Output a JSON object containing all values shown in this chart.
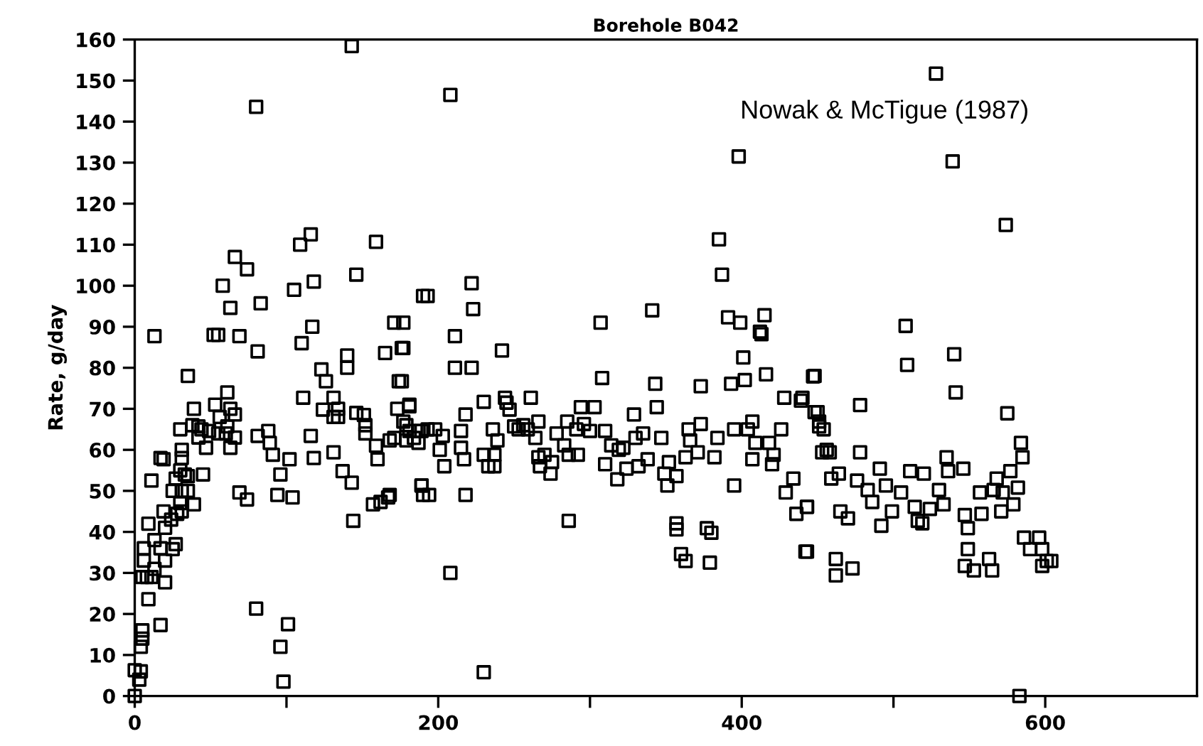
{
  "chart_data": {
    "type": "scatter",
    "title": "Borehole B042",
    "ylabel": "Rate, g/day",
    "annotations": [
      "Nowak & McTigue (1987)"
    ],
    "marker": "square",
    "grid": false,
    "xlim": [
      0,
      700
    ],
    "ylim": [
      0,
      160
    ],
    "xticks": [
      0,
      {
        "value": 100,
        "label": null
      },
      200,
      {
        "value": 300,
        "label": null
      },
      400,
      {
        "value": 500,
        "label": null
      },
      600
    ],
    "yticks": [
      0,
      10,
      20,
      30,
      40,
      50,
      60,
      70,
      80,
      90,
      100,
      110,
      120,
      130,
      140,
      150,
      160
    ],
    "series": [
      {
        "color": "#000000",
        "x": [
          0,
          0,
          4,
          3,
          4,
          5,
          5,
          9,
          17,
          5,
          8,
          11,
          6,
          6,
          13,
          20,
          9,
          17,
          19,
          20,
          13,
          20,
          17,
          19,
          11,
          13,
          25,
          27,
          24,
          28,
          30,
          25,
          27,
          31,
          33,
          30,
          31,
          31,
          35,
          35,
          31,
          39,
          35,
          30,
          39,
          38,
          42,
          45,
          42,
          47,
          49,
          44,
          52,
          55,
          58,
          63,
          66,
          74,
          69,
          53,
          56,
          61,
          63,
          66,
          61,
          60,
          55,
          63,
          66,
          69,
          74,
          80,
          81,
          83,
          80,
          81,
          88,
          89,
          91,
          94,
          96,
          96,
          98,
          101,
          102,
          104,
          105,
          109,
          116,
          110,
          111,
          116,
          118,
          118,
          117,
          123,
          126,
          124,
          131,
          131,
          131,
          134,
          134,
          137,
          143,
          143,
          146,
          144,
          140,
          140,
          146,
          151,
          152,
          152,
          159,
          159,
          160,
          157,
          162,
          167,
          168,
          165,
          171,
          176,
          174,
          173,
          181,
          168,
          171,
          179,
          179,
          189,
          190,
          190,
          187,
          177,
          177,
          176,
          181,
          177,
          181,
          184,
          189,
          193,
          187,
          198,
          203,
          201,
          204,
          189,
          194,
          193,
          208,
          211,
          211,
          222,
          222,
          223,
          215,
          215,
          217,
          218,
          218,
          230,
          208,
          230,
          230,
          233,
          237,
          237,
          236,
          239,
          242,
          244,
          245,
          247,
          250,
          253,
          256,
          259,
          261,
          266,
          264,
          266,
          267,
          270,
          274,
          275,
          278,
          283,
          285,
          286,
          286,
          291,
          292,
          294,
          296,
          300,
          303,
          307,
          308,
          310,
          310,
          314,
          318,
          319,
          322,
          324,
          329,
          330,
          332,
          335,
          338,
          341,
          343,
          344,
          347,
          349,
          351,
          352,
          357,
          357,
          357,
          360,
          363,
          363,
          365,
          366,
          371,
          373,
          373,
          377,
          380,
          379,
          382,
          384,
          385,
          387,
          391,
          393,
          395,
          395,
          398,
          399,
          401,
          402,
          404,
          407,
          409,
          407,
          412,
          413,
          415,
          416,
          418,
          421,
          420,
          426,
          428,
          429,
          434,
          436,
          440,
          442,
          443,
          447,
          448,
          451,
          453,
          439,
          448,
          450,
          451,
          454,
          456,
          458,
          459,
          443,
          443,
          462,
          462,
          465,
          470,
          473,
          464,
          476,
          478,
          478,
          483,
          486,
          491,
          492,
          495,
          499,
          505,
          508,
          509,
          511,
          514,
          516,
          519,
          520,
          524,
          528,
          530,
          533,
          535,
          536,
          539,
          540,
          541,
          546,
          547,
          549,
          549,
          547,
          553,
          557,
          558,
          563,
          565,
          566,
          568,
          571,
          572,
          574,
          575,
          577,
          579,
          582,
          583,
          584,
          585,
          586,
          590,
          596,
          598,
          598,
          601,
          604
        ],
        "values": [
          0,
          6.3,
          6,
          4,
          12,
          14,
          16,
          23.6,
          17.3,
          29,
          29,
          29,
          33,
          36,
          31,
          27.7,
          42,
          36,
          45,
          41,
          38,
          33,
          58,
          57.7,
          52.5,
          87.7,
          35.8,
          37,
          43,
          44.4,
          47,
          50,
          53,
          50,
          54,
          55,
          58,
          60,
          53.6,
          50,
          45,
          46.7,
          78,
          65,
          70,
          66,
          65.7,
          54,
          63,
          60.5,
          64.6,
          65,
          88,
          88,
          100,
          94.6,
          107,
          104,
          87.7,
          71,
          68,
          74,
          70,
          68.6,
          65.7,
          64,
          64,
          60.5,
          63,
          49.6,
          47.9,
          143.6,
          84,
          95.7,
          21.3,
          63.4,
          64.6,
          61.7,
          58.8,
          49,
          54,
          12,
          3.5,
          17.5,
          57.7,
          48.4,
          99,
          110,
          112.5,
          86,
          72.7,
          63.4,
          101,
          58,
          90,
          79.6,
          76.7,
          69.8,
          72.7,
          68,
          59.4,
          70,
          68,
          54.8,
          52,
          158.4,
          102.7,
          42.7,
          83,
          80,
          69,
          68.5,
          66,
          64,
          110.7,
          61,
          57.7,
          46.7,
          47.3,
          48.4,
          49,
          83.6,
          91,
          84.8,
          76.7,
          70,
          70.6,
          62.3,
          62.9,
          66,
          62.3,
          51.3,
          49,
          97.5,
          64.6,
          91,
          84.8,
          76.7,
          71,
          66.9,
          64.6,
          62.9,
          64.6,
          65,
          61.7,
          65,
          63.4,
          60,
          56,
          51.3,
          49,
          97.5,
          146.5,
          87.7,
          80,
          80,
          100.6,
          94.3,
          64.6,
          60.5,
          57.7,
          49,
          68.6,
          71.7,
          30,
          5.8,
          58.8,
          56,
          56,
          58.8,
          65,
          62.3,
          84.2,
          72.7,
          71.5,
          69.8,
          65.7,
          65,
          66,
          65,
          72.7,
          66.9,
          62.9,
          58.2,
          56,
          58.8,
          54.2,
          57,
          64,
          61.1,
          66.9,
          58.8,
          42.7,
          65,
          58.8,
          70.4,
          66.3,
          64.6,
          70.4,
          91,
          77.5,
          64.6,
          56.5,
          61.1,
          52.8,
          60,
          60.5,
          55.4,
          68.6,
          62.9,
          56,
          64,
          57.7,
          94,
          76.1,
          70.4,
          62.9,
          54.2,
          51.3,
          57,
          53.6,
          42.1,
          40.6,
          34.6,
          32.9,
          58.2,
          65,
          62.3,
          59.4,
          75.5,
          66.3,
          40.9,
          39.8,
          32.5,
          58.2,
          62.9,
          111.3,
          102.7,
          92.3,
          76.1,
          65,
          51.3,
          131.5,
          91,
          82.5,
          77,
          65,
          66.9,
          61.7,
          57.7,
          88.8,
          88.2,
          92.8,
          78.4,
          61.7,
          58.8,
          56.5,
          65,
          72.7,
          49.6,
          53,
          44.4,
          72.7,
          35.2,
          46.1,
          77.9,
          69.2,
          65.7,
          59.4,
          72,
          78,
          69.2,
          66.9,
          65,
          60,
          59.4,
          53,
          46.1,
          35.2,
          33.4,
          29.4,
          45,
          43.3,
          31.1,
          54.2,
          52.5,
          70.9,
          59.4,
          50.2,
          47.3,
          55.4,
          41.5,
          51.3,
          45,
          49.6,
          90.2,
          80.7,
          54.8,
          46.1,
          42.7,
          42.1,
          54.2,
          45.6,
          151.7,
          50.2,
          46.7,
          58.2,
          54.8,
          130.3,
          83.3,
          74,
          55.4,
          44.1,
          40.9,
          35.8,
          31.7,
          30.6,
          49.6,
          44.4,
          33.4,
          30.6,
          50.2,
          53,
          45,
          49.6,
          114.8,
          68.9,
          54.8,
          46.7,
          50.8,
          0,
          61.7,
          58.2,
          38.6,
          35.8,
          38.6,
          35.8,
          31.7,
          32.9,
          32.9
        ]
      }
    ]
  }
}
